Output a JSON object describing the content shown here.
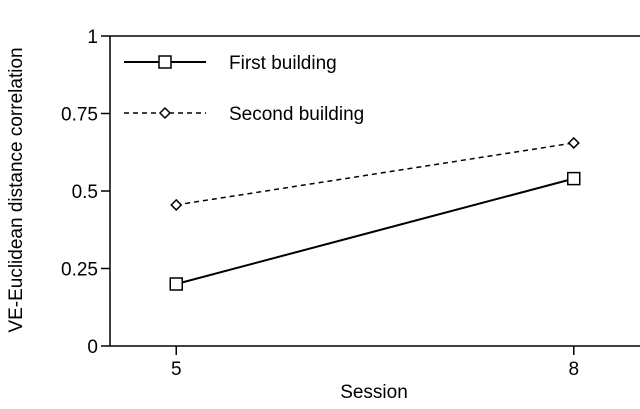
{
  "chart_data": {
    "type": "line",
    "xlabel": "Session",
    "ylabel": "VE-Euclidean distance correlation",
    "x": [
      5,
      8
    ],
    "xlim": [
      4.5,
      8.5
    ],
    "ylim": [
      0,
      1
    ],
    "xticks": [
      5,
      8
    ],
    "xtick_labels": [
      "5",
      "8"
    ],
    "yticks": [
      0,
      0.25,
      0.5,
      0.75,
      1
    ],
    "ytick_labels": [
      "0",
      "0.25",
      "0.5",
      "0.75",
      "1"
    ],
    "grid": false,
    "legend_position": "top-left",
    "series": [
      {
        "name": "First building",
        "values": [
          0.2,
          0.54
        ],
        "line_style": "solid",
        "marker": "square",
        "color": "#000000"
      },
      {
        "name": "Second building",
        "values": [
          0.455,
          0.655
        ],
        "line_style": "dashed",
        "marker": "diamond",
        "color": "#000000"
      }
    ]
  }
}
